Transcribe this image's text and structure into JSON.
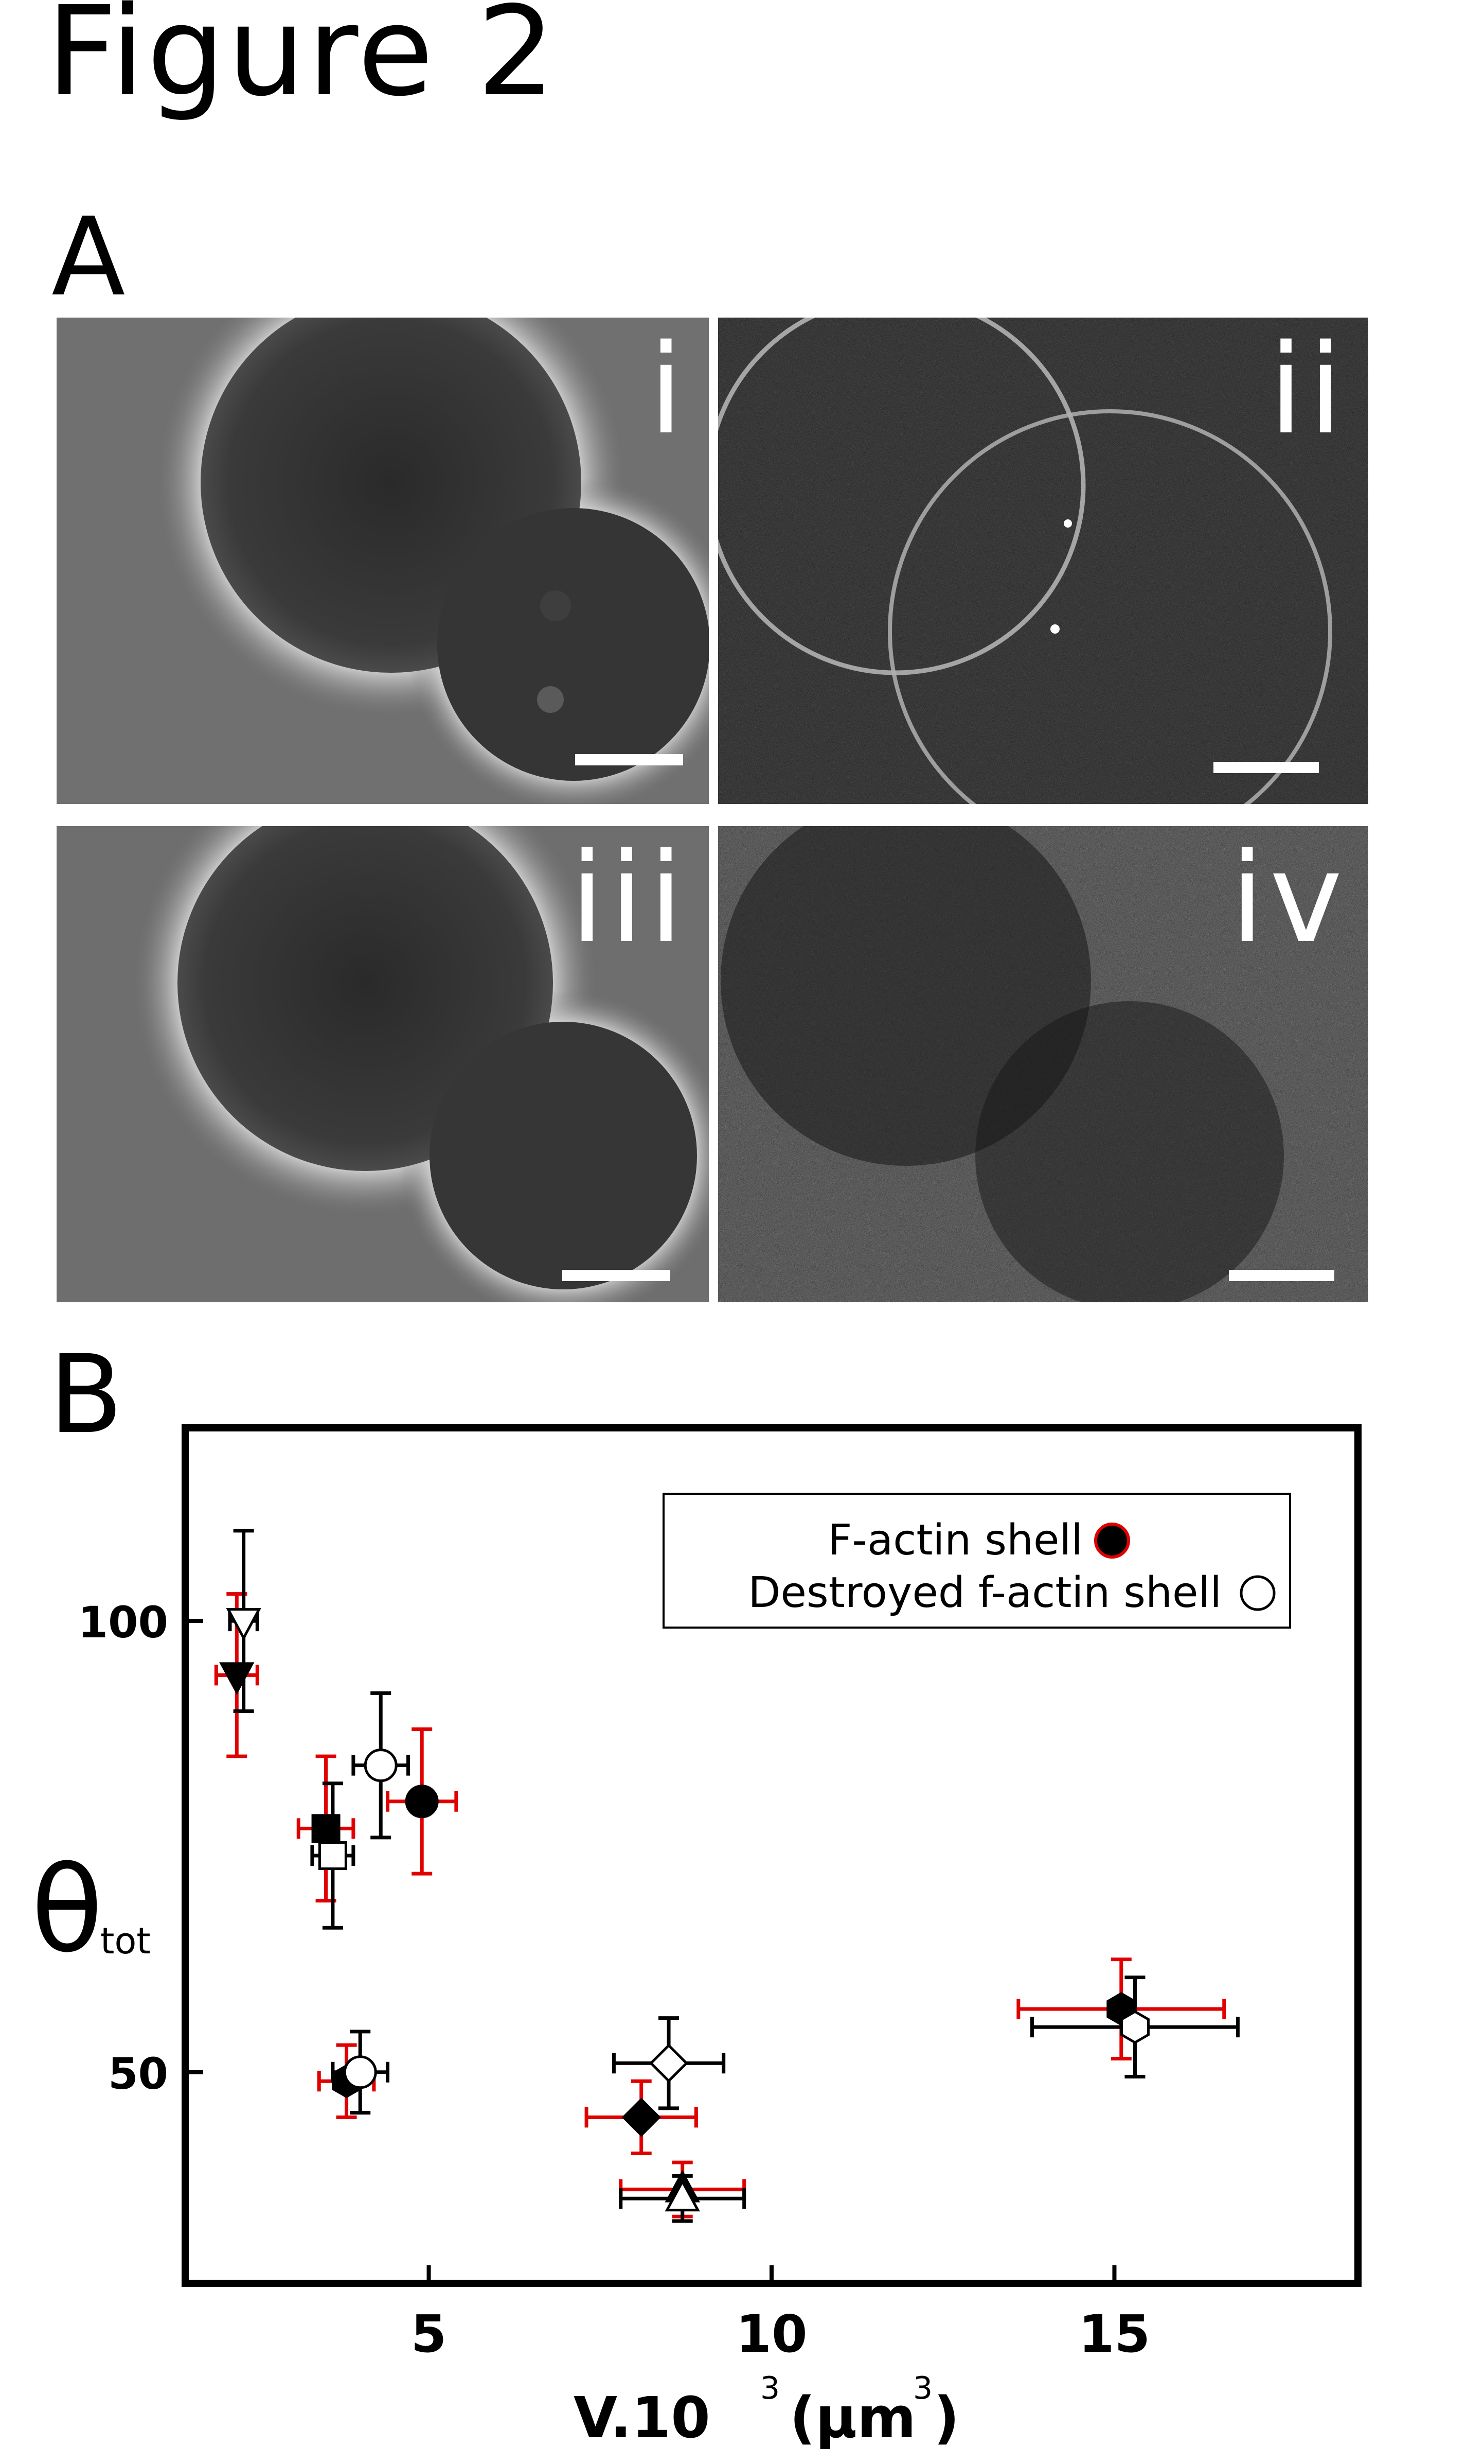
{
  "figure": {
    "title": "Figure 2"
  },
  "panelA": {
    "letter": "A",
    "panels": [
      {
        "label": "i",
        "kind": "phase"
      },
      {
        "label": "ii",
        "kind": "fluorescence"
      },
      {
        "label": "iii",
        "kind": "phase"
      },
      {
        "label": "iv",
        "kind": "fluorescence-dim"
      }
    ]
  },
  "panelB": {
    "letter": "B",
    "chart_data": {
      "type": "scatter",
      "xlim": [
        1.5,
        18.5
      ],
      "ylim": [
        27,
        121
      ],
      "xticks": [
        5,
        10,
        15
      ],
      "yticks": [
        50,
        100
      ],
      "xtick_labels": [
        "5",
        "10",
        "15"
      ],
      "ytick_labels": [
        "50",
        "100"
      ],
      "xlabel": "V.10",
      "xlabel_sup": "3",
      "xlabel_unit": "(µm",
      "xlabel_unit_sup": "3",
      "xlabel_close": ")",
      "ylabel": "θ",
      "ylabel_sub": "tot",
      "grid": false,
      "legend_position": "top-right",
      "series": [
        {
          "name": "F-actin shell",
          "fill": "#000000",
          "error_color": "#e00000",
          "points": [
            {
              "x": 2.2,
              "y": 94,
              "xerr": 0.3,
              "yerr": 9,
              "marker": "triangle-down"
            },
            {
              "x": 3.5,
              "y": 77,
              "xerr": 0.4,
              "yerr": 8,
              "marker": "square"
            },
            {
              "x": 4.9,
              "y": 80,
              "xerr": 0.5,
              "yerr": 8,
              "marker": "circle"
            },
            {
              "x": 3.8,
              "y": 49,
              "xerr": 0.4,
              "yerr": 4,
              "marker": "hexagon"
            },
            {
              "x": 8.1,
              "y": 45,
              "xerr": 0.8,
              "yerr": 4,
              "marker": "diamond"
            },
            {
              "x": 8.7,
              "y": 37,
              "xerr": 0.9,
              "yerr": 3,
              "marker": "triangle-up"
            },
            {
              "x": 15.1,
              "y": 57,
              "xerr": 1.5,
              "yerr": 5.5,
              "marker": "hexagon"
            }
          ]
        },
        {
          "name": "Destroyed f-actin shell",
          "fill": "#ffffff",
          "error_color": "#000000",
          "points": [
            {
              "x": 2.3,
              "y": 100,
              "xerr": 0.2,
              "yerr": 10,
              "marker": "triangle-down"
            },
            {
              "x": 3.6,
              "y": 74,
              "xerr": 0.3,
              "yerr": 8,
              "marker": "square"
            },
            {
              "x": 4.3,
              "y": 84,
              "xerr": 0.4,
              "yerr": 8,
              "marker": "circle"
            },
            {
              "x": 4.0,
              "y": 50,
              "xerr": 0.4,
              "yerr": 4.5,
              "marker": "circle"
            },
            {
              "x": 8.5,
              "y": 51,
              "xerr": 0.8,
              "yerr": 5,
              "marker": "diamond"
            },
            {
              "x": 8.7,
              "y": 36,
              "xerr": 0.9,
              "yerr": 2.5,
              "marker": "triangle-up"
            },
            {
              "x": 15.3,
              "y": 55,
              "xerr": 1.5,
              "yerr": 5.5,
              "marker": "hexagon"
            }
          ]
        }
      ]
    }
  }
}
